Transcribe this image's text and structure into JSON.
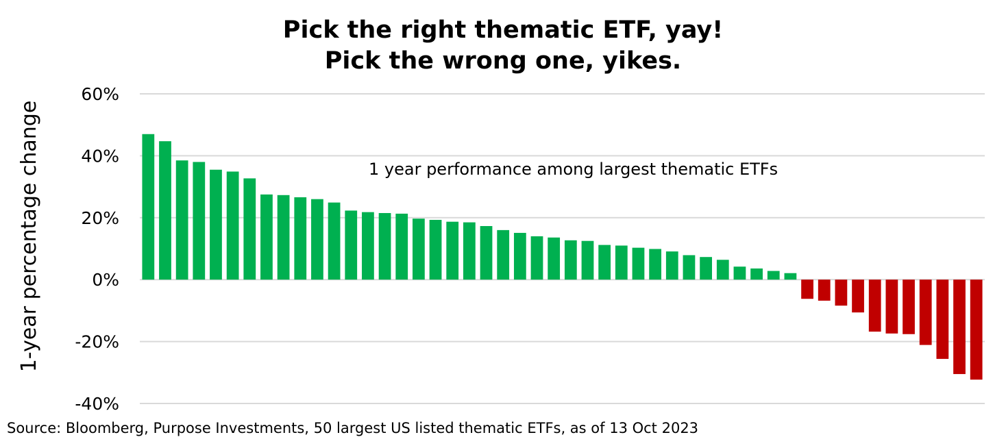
{
  "chart_data": {
    "type": "bar",
    "title_lines": [
      "Pick the right thematic ETF, yay!",
      "Pick the wrong one, yikes."
    ],
    "ylabel": "1-year percentage change",
    "annotation": "1 year performance among largest thematic ETFs",
    "source": "Source: Bloomberg, Purpose Investments, 50 largest US listed thematic ETFs, as of 13 Oct 2023",
    "ylim": [
      -40,
      60
    ],
    "yticks": [
      60,
      40,
      20,
      0,
      -20,
      -40
    ],
    "ytick_labels": [
      "60%",
      "40%",
      "20%",
      "0%",
      "-20%",
      "-40%"
    ],
    "grid": true,
    "legend": "none",
    "values": [
      47,
      44.7,
      38.5,
      38,
      35.5,
      34.9,
      32.7,
      27.5,
      27.3,
      26.6,
      26,
      24.9,
      22.3,
      21.8,
      21.5,
      21.3,
      19.7,
      19.3,
      18.7,
      18.5,
      17.3,
      16,
      15.1,
      14,
      13.6,
      12.7,
      12.5,
      11.2,
      11,
      10.3,
      9.9,
      9.1,
      7.9,
      7.3,
      6.4,
      4.2,
      3.6,
      2.8,
      2.1,
      -6.2,
      -6.8,
      -8.4,
      -10.6,
      -16.8,
      -17.4,
      -17.6,
      -21.1,
      -25.6,
      -30.5,
      -32.3
    ],
    "colors": {
      "positive": "#00b050",
      "negative": "#c00000",
      "grid": "#d9d9d9"
    }
  }
}
